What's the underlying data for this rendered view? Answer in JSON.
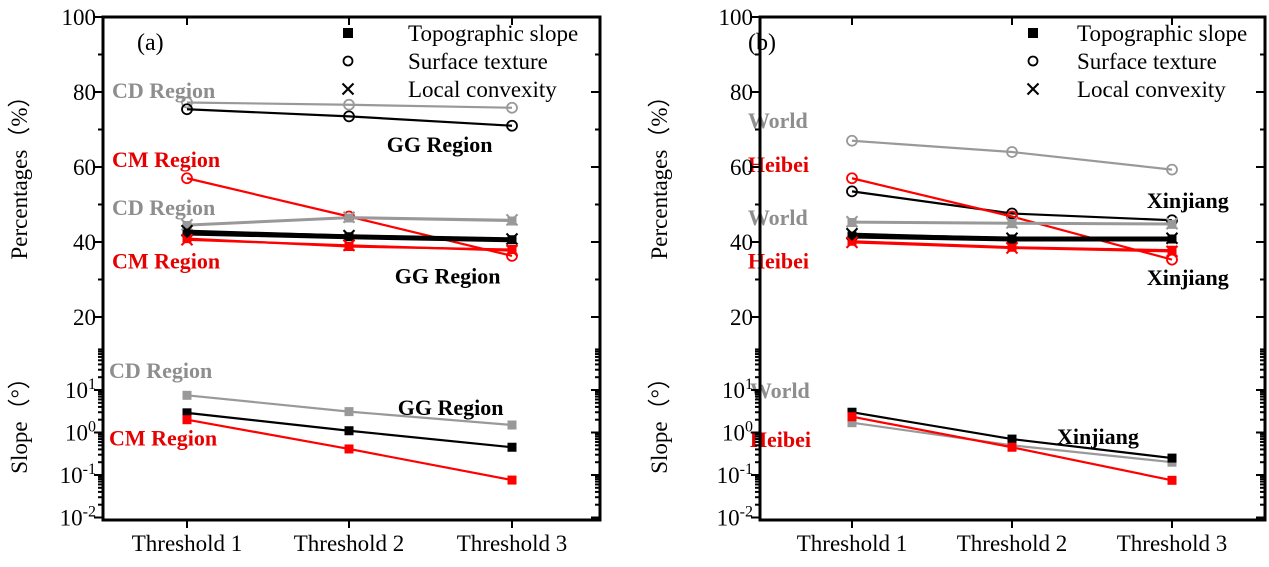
{
  "figure": {
    "background": "#ffffff",
    "colors": {
      "black": "#000000",
      "gray": "#999999",
      "red": "#ff0000",
      "label_red": "#e60000",
      "label_gray": "#8e8e8e"
    }
  },
  "chart_data": [
    {
      "type": "line",
      "panel_letter": "(a)",
      "x_categories": [
        "Threshold 1",
        "Threshold 2",
        "Threshold 3"
      ],
      "percent_axis": {
        "label": "Percentages（%）",
        "ticks": [
          "100",
          "80",
          "60",
          "40",
          "20"
        ],
        "tick_values": [
          100,
          80,
          60,
          40,
          20
        ],
        "range": [
          20,
          100
        ]
      },
      "slope_axis": {
        "label": "Slope（°）",
        "scale": "log",
        "ticks": [
          "10^1",
          "10^0",
          "10^-1",
          "10^-2"
        ],
        "tick_values": [
          10,
          1,
          0.1,
          0.01
        ]
      },
      "legend": [
        {
          "marker": "square",
          "label": "Topographic slope"
        },
        {
          "marker": "circle",
          "label": "Surface texture"
        },
        {
          "marker": "x",
          "label": "Local convexity"
        }
      ],
      "percent_series": [
        {
          "name": "CD Region surface texture",
          "region": "CD Region",
          "metric": "Surface texture",
          "color": "#999999",
          "marker": "circle",
          "thick": false,
          "values": [
            77.2,
            76.6,
            75.8
          ]
        },
        {
          "name": "GG Region surface texture",
          "region": "GG Region",
          "metric": "Surface texture",
          "color": "#000000",
          "marker": "circle",
          "thick": false,
          "values": [
            75.4,
            73.5,
            71.0
          ]
        },
        {
          "name": "CM Region surface texture",
          "region": "CM Region",
          "metric": "Surface texture",
          "color": "#ff0000",
          "marker": "circle",
          "thick": false,
          "values": [
            57.0,
            46.8,
            36.3
          ]
        },
        {
          "name": "CD Region topographic slope",
          "region": "CD Region",
          "metric": "Topographic slope",
          "color": "#999999",
          "marker": "square",
          "thick": false,
          "values": [
            44.4,
            46.4,
            45.6
          ]
        },
        {
          "name": "CM Region topographic slope",
          "region": "CM Region",
          "metric": "Topographic slope",
          "color": "#ff0000",
          "marker": "square",
          "thick": false,
          "values": [
            40.9,
            38.8,
            38.0
          ]
        },
        {
          "name": "GG Region topographic slope",
          "region": "GG Region",
          "metric": "Topographic slope",
          "color": "#000000",
          "marker": "square",
          "thick": true,
          "values": [
            42.4,
            41.4,
            40.6
          ]
        },
        {
          "name": "CD Region local convexity",
          "region": "CD Region",
          "metric": "Local convexity",
          "color": "#999999",
          "marker": "x",
          "thick": false,
          "values": [
            44.6,
            46.6,
            45.9
          ]
        },
        {
          "name": "GG Region local convexity",
          "region": "GG Region",
          "metric": "Local convexity",
          "color": "#000000",
          "marker": "x",
          "thick": false,
          "values": [
            43.0,
            41.7,
            40.8
          ]
        },
        {
          "name": "CM Region local convexity",
          "region": "CM Region",
          "metric": "Local convexity",
          "color": "#ff0000",
          "marker": "x",
          "thick": false,
          "values": [
            40.6,
            39.1,
            37.7
          ]
        }
      ],
      "slope_series": [
        {
          "name": "CD Region slope",
          "region": "CD Region",
          "color": "#999999",
          "marker": "square",
          "values": [
            7.5,
            3.1,
            1.5
          ]
        },
        {
          "name": "GG Region slope",
          "region": "GG Region",
          "color": "#000000",
          "marker": "square",
          "values": [
            2.9,
            1.1,
            0.45
          ]
        },
        {
          "name": "CM Region slope",
          "region": "CM Region",
          "color": "#ff0000",
          "marker": "square",
          "values": [
            2.0,
            0.41,
            0.076
          ]
        }
      ],
      "annotations": [
        {
          "text": "CD Region",
          "color": "#8e8e8e",
          "section": "percent",
          "y": 78.4,
          "x_rel": 0.018
        },
        {
          "text": "CM Region",
          "color": "#e60000",
          "section": "percent",
          "y": 60.0,
          "x_rel": 0.018
        },
        {
          "text": "GG Region",
          "color": "#000000",
          "section": "percent",
          "y": 64.0,
          "x_rel": 0.571
        },
        {
          "text": "CD Region",
          "color": "#8e8e8e",
          "section": "percent",
          "y": 47.2,
          "x_rel": 0.018
        },
        {
          "text": "CM Region",
          "color": "#e60000",
          "section": "percent",
          "y": 33.0,
          "x_rel": 0.018
        },
        {
          "text": "GG Region",
          "color": "#000000",
          "section": "percent",
          "y": 29.0,
          "x_rel": 0.587
        },
        {
          "text": "CD Region",
          "color": "#8e8e8e",
          "section": "slope",
          "y": 19.0,
          "x_rel": 0.012
        },
        {
          "text": "CM Region",
          "color": "#e60000",
          "section": "slope",
          "y": 0.5,
          "x_rel": 0.012
        },
        {
          "text": "GG Region",
          "color": "#000000",
          "section": "slope",
          "y": 2.6,
          "x_rel": 0.593
        }
      ]
    },
    {
      "type": "line",
      "panel_letter": "(b)",
      "x_categories": [
        "Threshold 1",
        "Threshold 2",
        "Threshold 3"
      ],
      "percent_axis": {
        "label": "Percentages（%）",
        "ticks": [
          "100",
          "80",
          "60",
          "40",
          "20"
        ],
        "tick_values": [
          100,
          80,
          60,
          40,
          20
        ],
        "range": [
          20,
          100
        ]
      },
      "slope_axis": {
        "label": "Slope（°）",
        "scale": "log",
        "ticks": [
          "10^1",
          "10^0",
          "10^-1",
          "10^-2"
        ],
        "tick_values": [
          10,
          1,
          0.1,
          0.01
        ]
      },
      "legend": [
        {
          "marker": "square",
          "label": "Topographic slope"
        },
        {
          "marker": "circle",
          "label": "Surface texture"
        },
        {
          "marker": "x",
          "label": "Local convexity"
        }
      ],
      "percent_series": [
        {
          "name": "World surface texture",
          "region": "World",
          "metric": "Surface texture",
          "color": "#999999",
          "marker": "circle",
          "thick": false,
          "values": [
            67.0,
            64.0,
            59.3
          ]
        },
        {
          "name": "Xinjiang surface texture",
          "region": "Xinjiang",
          "metric": "Surface texture",
          "color": "#000000",
          "marker": "circle",
          "thick": false,
          "values": [
            53.5,
            47.6,
            45.8
          ]
        },
        {
          "name": "Heibei surface texture",
          "region": "Heibei",
          "metric": "Surface texture",
          "color": "#ff0000",
          "marker": "circle",
          "thick": false,
          "values": [
            57.0,
            46.8,
            35.3
          ]
        },
        {
          "name": "World topographic slope",
          "region": "World",
          "metric": "Topographic slope",
          "color": "#999999",
          "marker": "square",
          "thick": false,
          "values": [
            45.2,
            44.9,
            44.7
          ]
        },
        {
          "name": "Heibei topographic slope",
          "region": "Heibei",
          "metric": "Topographic slope",
          "color": "#ff0000",
          "marker": "square",
          "thick": false,
          "values": [
            40.2,
            38.6,
            37.8
          ]
        },
        {
          "name": "Xinjiang topographic slope",
          "region": "Xinjiang",
          "metric": "Topographic slope",
          "color": "#000000",
          "marker": "square",
          "thick": true,
          "values": [
            41.6,
            40.8,
            40.8
          ]
        },
        {
          "name": "World local convexity",
          "region": "World",
          "metric": "Local convexity",
          "color": "#999999",
          "marker": "x",
          "thick": false,
          "values": [
            45.4,
            45.1,
            44.9
          ]
        },
        {
          "name": "Xinjiang local convexity",
          "region": "Xinjiang",
          "metric": "Local convexity",
          "color": "#000000",
          "marker": "x",
          "thick": false,
          "values": [
            42.2,
            41.0,
            41.0
          ]
        },
        {
          "name": "Heibei local convexity",
          "region": "Heibei",
          "metric": "Local convexity",
          "color": "#ff0000",
          "marker": "x",
          "thick": false,
          "values": [
            39.9,
            38.4,
            37.5
          ]
        }
      ],
      "slope_series": [
        {
          "name": "World slope",
          "region": "World",
          "color": "#999999",
          "marker": "square",
          "values": [
            1.7,
            0.5,
            0.2
          ]
        },
        {
          "name": "Xinjiang slope",
          "region": "Xinjiang",
          "color": "#000000",
          "marker": "square",
          "values": [
            3.0,
            0.7,
            0.25
          ]
        },
        {
          "name": "Heibei slope",
          "region": "Heibei",
          "color": "#ff0000",
          "marker": "square",
          "values": [
            2.35,
            0.45,
            0.075
          ]
        }
      ],
      "annotations": [
        {
          "text": "World",
          "color": "#8e8e8e",
          "section": "percent",
          "y": 70.4,
          "x_rel": -0.024
        },
        {
          "text": "Heibei",
          "color": "#e60000",
          "section": "percent",
          "y": 58.7,
          "x_rel": -0.024
        },
        {
          "text": "Xinjiang",
          "color": "#000000",
          "section": "percent",
          "y": 49.1,
          "x_rel": 0.766
        },
        {
          "text": "World",
          "color": "#8e8e8e",
          "section": "percent",
          "y": 44.6,
          "x_rel": -0.024
        },
        {
          "text": "Heibei",
          "color": "#e60000",
          "section": "percent",
          "y": 33.0,
          "x_rel": -0.024
        },
        {
          "text": "Xinjiang",
          "color": "#000000",
          "section": "percent",
          "y": 28.6,
          "x_rel": 0.766
        },
        {
          "text": "World",
          "color": "#8e8e8e",
          "section": "slope",
          "y": 6.5,
          "x_rel": -0.02
        },
        {
          "text": "Heibei",
          "color": "#e60000",
          "section": "slope",
          "y": 0.46,
          "x_rel": -0.02
        },
        {
          "text": "Xinjiang",
          "color": "#000000",
          "section": "slope",
          "y": 0.54,
          "x_rel": 0.588
        }
      ]
    }
  ]
}
